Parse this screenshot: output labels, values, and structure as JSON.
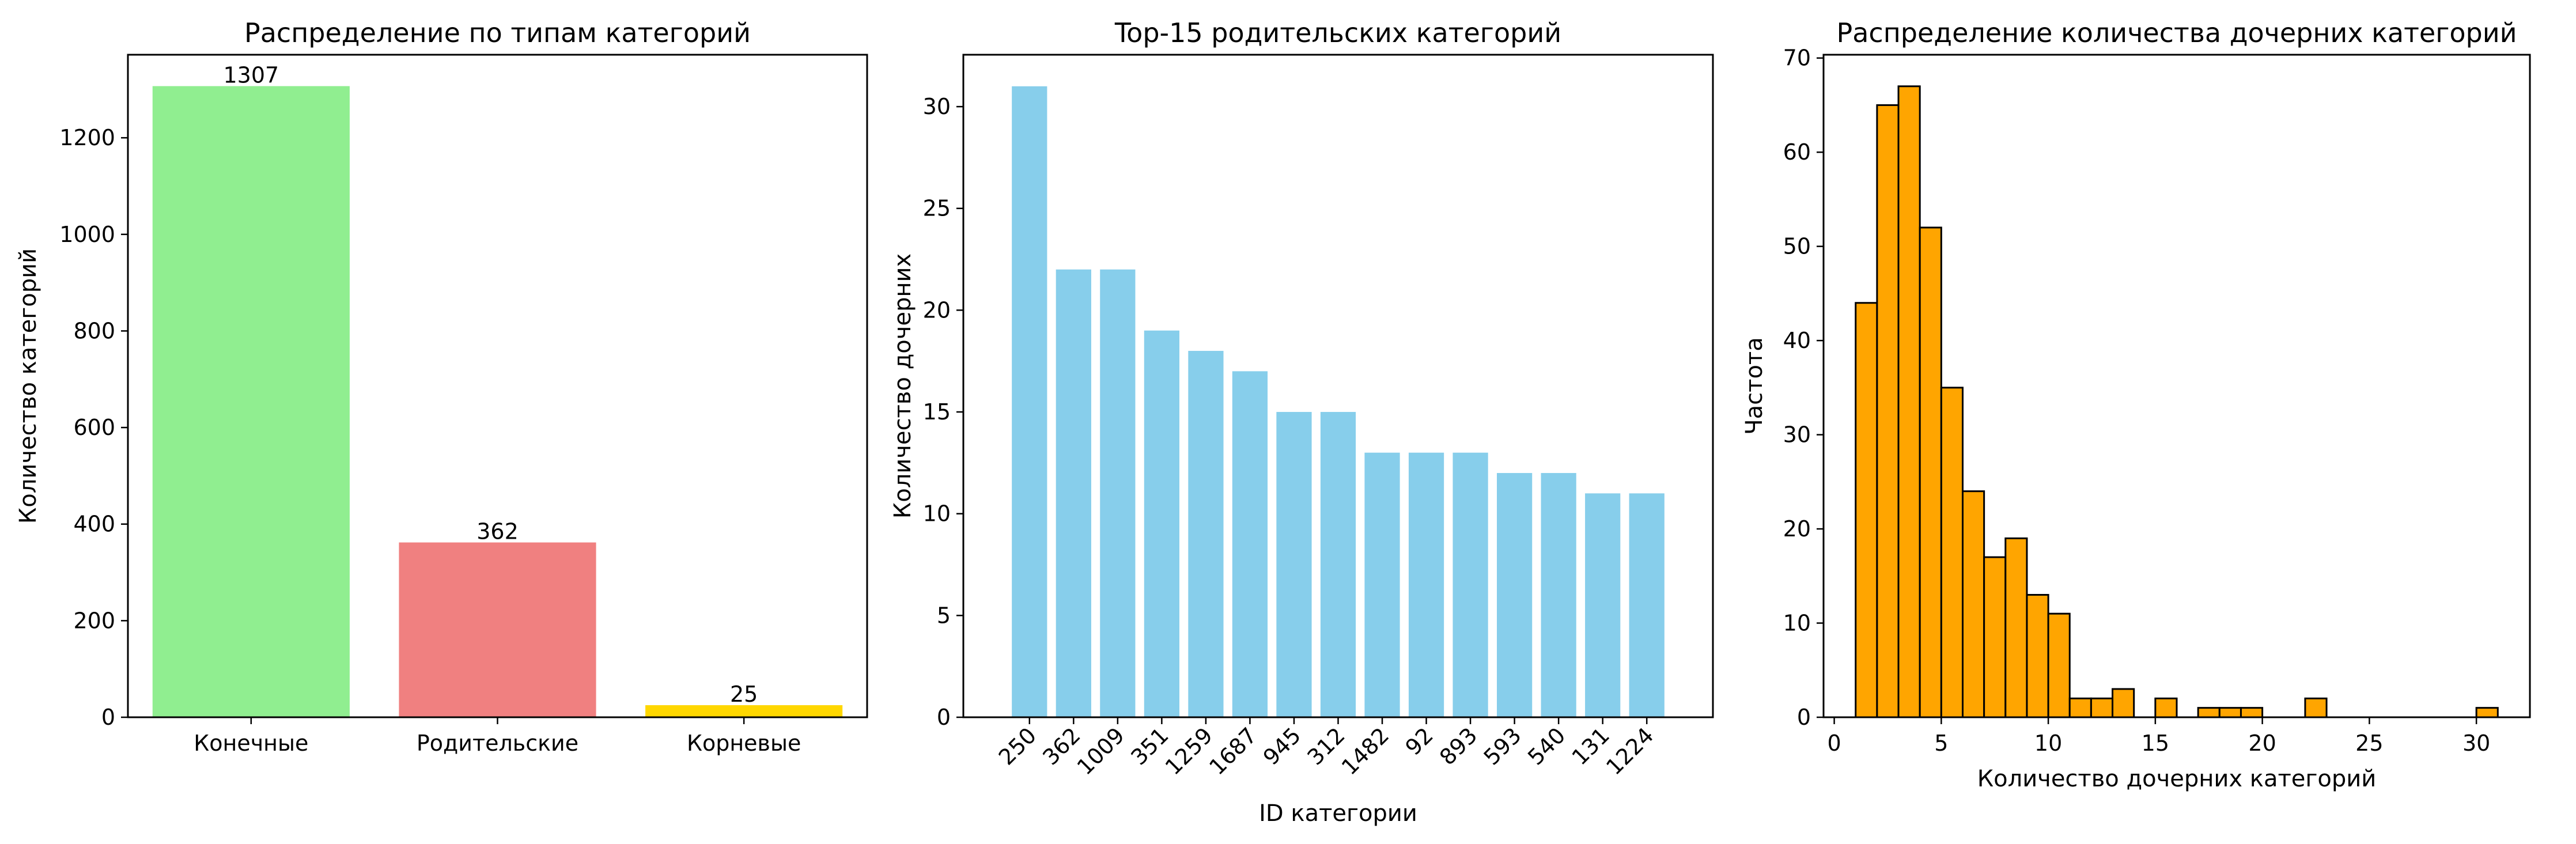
{
  "chart_data": [
    {
      "type": "bar",
      "title": "Распределение по типам категорий",
      "xlabel": "",
      "ylabel": "Количество категорий",
      "categories": [
        "Конечные",
        "Родительские",
        "Корневые"
      ],
      "values": [
        1307,
        362,
        25
      ],
      "data_labels": [
        "1307",
        "362",
        "25"
      ],
      "colors": [
        "#90ee90",
        "#f08080",
        "#ffd700"
      ],
      "ylim": [
        0,
        1372
      ],
      "yticks": [
        0,
        200,
        400,
        600,
        800,
        1000,
        1200
      ],
      "grid": false,
      "legend": "none"
    },
    {
      "type": "bar",
      "title": "Top-15 родительских категорий",
      "xlabel": "ID категории",
      "ylabel": "Количество дочерних",
      "categories": [
        "250",
        "362",
        "1009",
        "351",
        "1259",
        "1687",
        "945",
        "312",
        "1482",
        "92",
        "893",
        "593",
        "540",
        "131",
        "1224"
      ],
      "values": [
        31,
        22,
        22,
        19,
        18,
        17,
        15,
        15,
        13,
        13,
        13,
        12,
        12,
        11,
        11
      ],
      "color": "#87ceeb",
      "ylim": [
        0,
        32.55
      ],
      "yticks": [
        0,
        5,
        10,
        15,
        20,
        25,
        30
      ],
      "xtick_rotation": 45,
      "grid": false,
      "legend": "none"
    },
    {
      "type": "histogram",
      "title": "Распределение количества дочерних категорий",
      "xlabel": "Количество дочерних категорий",
      "ylabel": "Частота",
      "bin_start": 1,
      "bin_width": 1,
      "counts": [
        44,
        65,
        67,
        52,
        35,
        24,
        17,
        19,
        13,
        11,
        2,
        2,
        3,
        0,
        2,
        0,
        1,
        1,
        1,
        0,
        0,
        2,
        0,
        0,
        0,
        0,
        0,
        0,
        0,
        1
      ],
      "color": "#ffa500",
      "edgecolor": "#000000",
      "xlim": [
        -0.5,
        32.5
      ],
      "ylim": [
        0,
        70.35
      ],
      "xticks": [
        0,
        5,
        10,
        15,
        20,
        25,
        30
      ],
      "yticks": [
        0,
        10,
        20,
        30,
        40,
        50,
        60,
        70
      ],
      "grid": false,
      "legend": "none"
    }
  ]
}
